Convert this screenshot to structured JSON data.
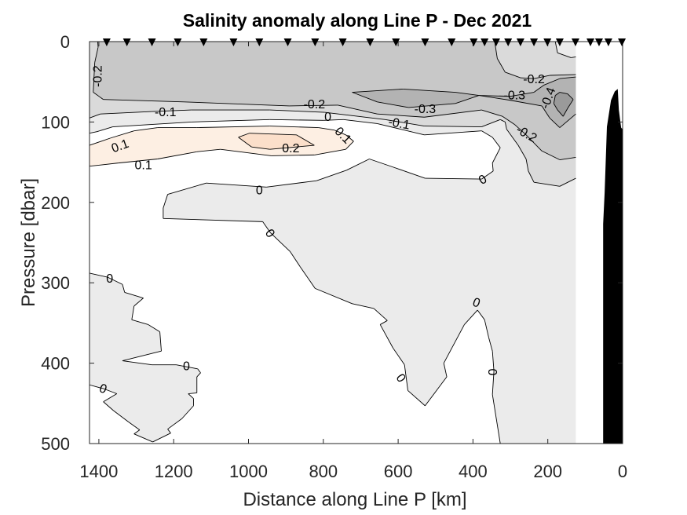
{
  "chart_data": {
    "type": "contour",
    "title": "Salinity anomaly along Line P - Dec 2021",
    "xlabel": "Distance along Line P [km]",
    "ylabel": "Pressure [dbar]",
    "xlim": [
      0,
      1425
    ],
    "ylim": [
      0,
      500
    ],
    "x_reversed": true,
    "y_reversed": true,
    "xticks": [
      1400,
      1200,
      1000,
      800,
      600,
      400,
      200,
      0
    ],
    "xtick_labels": [
      "1400",
      "1200",
      "1000",
      "800",
      "600",
      "400",
      "200",
      "0"
    ],
    "yticks": [
      0,
      100,
      200,
      300,
      400,
      500
    ],
    "ytick_labels": [
      "0",
      "100",
      "200",
      "300",
      "400",
      "500"
    ],
    "data_extent_km": [
      125,
      1425
    ],
    "levels": [
      -0.4,
      -0.3,
      -0.2,
      -0.1,
      0,
      0.1,
      0.2
    ],
    "background_color": "#ffffff",
    "regions": [
      {
        "level": "<=0",
        "color": "#ebebeb",
        "polygons": [
          [
            [
              1425,
              0
            ],
            [
              125,
              0
            ],
            [
              125,
              500
            ],
            [
              327,
              500
            ],
            [
              348,
              439
            ],
            [
              344,
              410
            ],
            [
              348,
              385
            ],
            [
              358,
              368
            ],
            [
              369,
              346
            ],
            [
              388,
              334
            ],
            [
              423,
              352
            ],
            [
              478,
              400
            ],
            [
              470,
              417
            ],
            [
              528,
              453
            ],
            [
              574,
              434
            ],
            [
              583,
              402
            ],
            [
              614,
              381
            ],
            [
              648,
              352
            ],
            [
              629,
              347
            ],
            [
              665,
              332
            ],
            [
              723,
              326
            ],
            [
              822,
              307
            ],
            [
              862,
              280
            ],
            [
              889,
              261
            ],
            [
              941,
              238
            ],
            [
              962,
              224
            ],
            [
              1228,
              220
            ],
            [
              1228,
              207
            ],
            [
              1216,
              190
            ],
            [
              1113,
              176
            ],
            [
              952,
              181
            ],
            [
              818,
              173
            ],
            [
              738,
              160
            ],
            [
              677,
              146
            ],
            [
              614,
              156
            ],
            [
              528,
              170
            ],
            [
              377,
              171
            ],
            [
              346,
              161
            ],
            [
              348,
              151
            ],
            [
              327,
              132
            ],
            [
              348,
              119
            ],
            [
              377,
              111
            ],
            [
              530,
              116
            ],
            [
              656,
              102
            ],
            [
              746,
              97
            ],
            [
              799,
              98
            ],
            [
              943,
              97
            ],
            [
              1153,
              100
            ],
            [
              1363,
              106
            ],
            [
              1405,
              112
            ],
            [
              1425,
              114
            ]
          ],
          [
            [
              1425,
              288
            ],
            [
              1377,
              293
            ],
            [
              1337,
              302
            ],
            [
              1331,
              312
            ],
            [
              1281,
              319
            ],
            [
              1306,
              329
            ],
            [
              1312,
              346
            ],
            [
              1268,
              352
            ],
            [
              1237,
              361
            ],
            [
              1233,
              385
            ],
            [
              1337,
              397
            ],
            [
              1258,
              402
            ],
            [
              1193,
              402
            ],
            [
              1136,
              407
            ],
            [
              1128,
              412
            ],
            [
              1138,
              417
            ],
            [
              1138,
              437
            ],
            [
              1161,
              438
            ],
            [
              1147,
              444
            ],
            [
              1147,
              453
            ],
            [
              1178,
              469
            ],
            [
              1216,
              482
            ],
            [
              1208,
              487
            ],
            [
              1256,
              498
            ],
            [
              1306,
              488
            ],
            [
              1291,
              483
            ],
            [
              1321,
              473
            ],
            [
              1361,
              459
            ],
            [
              1388,
              448
            ],
            [
              1352,
              438
            ],
            [
              1386,
              432
            ],
            [
              1425,
              427
            ]
          ]
        ]
      },
      {
        "level": "<=-0.1",
        "color": "#dadada",
        "polygons": [
          [
            [
              1425,
              0
            ],
            [
              180,
              0
            ],
            [
              174,
              14
            ],
            [
              138,
              20
            ],
            [
              125,
              19
            ],
            [
              125,
              170
            ],
            [
              168,
              180
            ],
            [
              237,
              175
            ],
            [
              252,
              161
            ],
            [
              258,
              146
            ],
            [
              279,
              129
            ],
            [
              310,
              109
            ],
            [
              314,
              100
            ],
            [
              327,
              97
            ],
            [
              377,
              106
            ],
            [
              530,
              105
            ],
            [
              635,
              97
            ],
            [
              797,
              88
            ],
            [
              943,
              85
            ],
            [
              1153,
              85
            ],
            [
              1258,
              87
            ],
            [
              1396,
              90
            ],
            [
              1425,
              95
            ]
          ]
        ]
      },
      {
        "level": "<=-0.2",
        "color": "#c8c8c8",
        "polygons": [
          [
            [
              1403,
              0
            ],
            [
              342,
              0
            ],
            [
              335,
              21
            ],
            [
              314,
              38
            ],
            [
              273,
              45
            ],
            [
              237,
              46
            ],
            [
              195,
              42
            ],
            [
              125,
              41
            ],
            [
              125,
              144
            ],
            [
              168,
              147
            ],
            [
              216,
              136
            ],
            [
              258,
              116
            ],
            [
              289,
              103
            ],
            [
              321,
              93
            ],
            [
              377,
              85
            ],
            [
              530,
              94
            ],
            [
              656,
              90
            ],
            [
              761,
              79
            ],
            [
              891,
              80
            ],
            [
              1172,
              75
            ],
            [
              1388,
              72
            ],
            [
              1415,
              63
            ],
            [
              1411,
              26
            ],
            [
              1402,
              7
            ]
          ]
        ]
      },
      {
        "level": "<=-0.3",
        "color": "#b3b3b3",
        "polygons": [
          [
            [
              723,
              63
            ],
            [
              587,
              59
            ],
            [
              447,
              63
            ],
            [
              384,
              67
            ],
            [
              447,
              77
            ],
            [
              572,
              82
            ],
            [
              656,
              75
            ]
          ],
          [
            [
              384,
              67
            ],
            [
              300,
              68
            ],
            [
              237,
              63
            ],
            [
              210,
              54
            ],
            [
              168,
              46
            ],
            [
              125,
              44
            ],
            [
              125,
              90
            ],
            [
              168,
              107
            ],
            [
              195,
              95
            ],
            [
              216,
              80
            ],
            [
              300,
              73
            ]
          ]
        ]
      },
      {
        "level": "<=-0.4",
        "color": "#9a9a9a",
        "polygons": [
          [
            [
              180,
              67
            ],
            [
              168,
              63
            ],
            [
              147,
              65
            ],
            [
              132,
              72
            ],
            [
              147,
              83
            ],
            [
              159,
              93
            ],
            [
              174,
              85
            ],
            [
              184,
              77
            ]
          ]
        ]
      },
      {
        "level": ">=0.1",
        "color": "#fdefe3",
        "polygons": [
          [
            [
              1425,
              129
            ],
            [
              1369,
              120
            ],
            [
              1306,
              111
            ],
            [
              1243,
              107
            ],
            [
              1138,
              107
            ],
            [
              943,
              105
            ],
            [
              813,
              107
            ],
            [
              771,
              110
            ],
            [
              740,
              116
            ],
            [
              719,
              124
            ],
            [
              740,
              134
            ],
            [
              824,
              141
            ],
            [
              939,
              142
            ],
            [
              1075,
              134
            ],
            [
              1138,
              137
            ],
            [
              1243,
              146
            ],
            [
              1348,
              151
            ],
            [
              1425,
              155
            ]
          ]
        ]
      },
      {
        "level": ">=0.2",
        "color": "#fbdfca",
        "polygons": [
          [
            [
              1027,
              119
            ],
            [
              998,
              114
            ],
            [
              872,
              116
            ],
            [
              824,
              129
            ],
            [
              943,
              134
            ],
            [
              992,
              131
            ]
          ]
        ]
      }
    ],
    "contour_labels": [
      {
        "text": "-0.2",
        "at": [
          1405,
          43
        ]
      },
      {
        "text": "-0.1",
        "at": [
          1222,
          87
        ]
      },
      {
        "text": "-0.2",
        "at": [
          824,
          77
        ]
      },
      {
        "text": "0",
        "at": [
          788,
          93
        ]
      },
      {
        "text": "0.1",
        "at": [
          746,
          116
        ]
      },
      {
        "text": "-0.3",
        "at": [
          528,
          83
        ]
      },
      {
        "text": "-0.1",
        "at": [
          597,
          101
        ]
      },
      {
        "text": "-0.2",
        "at": [
          237,
          46
        ]
      },
      {
        "text": "-0.3",
        "at": [
          289,
          66
        ]
      },
      {
        "text": "-0.4",
        "at": [
          201,
          70
        ]
      },
      {
        "text": "-0.2",
        "at": [
          256,
          114
        ]
      },
      {
        "text": "0.1",
        "at": [
          1344,
          129
        ]
      },
      {
        "text": "0.2",
        "at": [
          887,
          132
        ]
      },
      {
        "text": "0.1",
        "at": [
          1281,
          153
        ]
      },
      {
        "text": "0",
        "at": [
          971,
          184
        ]
      },
      {
        "text": "0",
        "at": [
          375,
          171
        ]
      },
      {
        "text": "0",
        "at": [
          941,
          238
        ]
      },
      {
        "text": "0",
        "at": [
          1371,
          294
        ]
      },
      {
        "text": "0",
        "at": [
          1166,
          403
        ]
      },
      {
        "text": "0",
        "at": [
          1388,
          431
        ]
      },
      {
        "text": "0",
        "at": [
          591,
          418
        ]
      },
      {
        "text": "0",
        "at": [
          390,
          324
        ]
      },
      {
        "text": "0",
        "at": [
          348,
          411
        ]
      }
    ],
    "stations_km": [
      1379,
      1325,
      1258,
      1189,
      1120,
      1040,
      971,
      895,
      822,
      748,
      675,
      606,
      528,
      457,
      398,
      369,
      338,
      306,
      273,
      237,
      201,
      168,
      126,
      86,
      63,
      38,
      2
    ],
    "bathymetry": [
      [
        52,
        500
      ],
      [
        52,
        227
      ],
      [
        48,
        188
      ],
      [
        42,
        106
      ],
      [
        31,
        73
      ],
      [
        21,
        62
      ],
      [
        13,
        59
      ],
      [
        10,
        85
      ],
      [
        4,
        107
      ],
      [
        0,
        109
      ],
      [
        0,
        500
      ]
    ],
    "bathymetry_color": "#000000",
    "station_marker_color": "#000000"
  }
}
